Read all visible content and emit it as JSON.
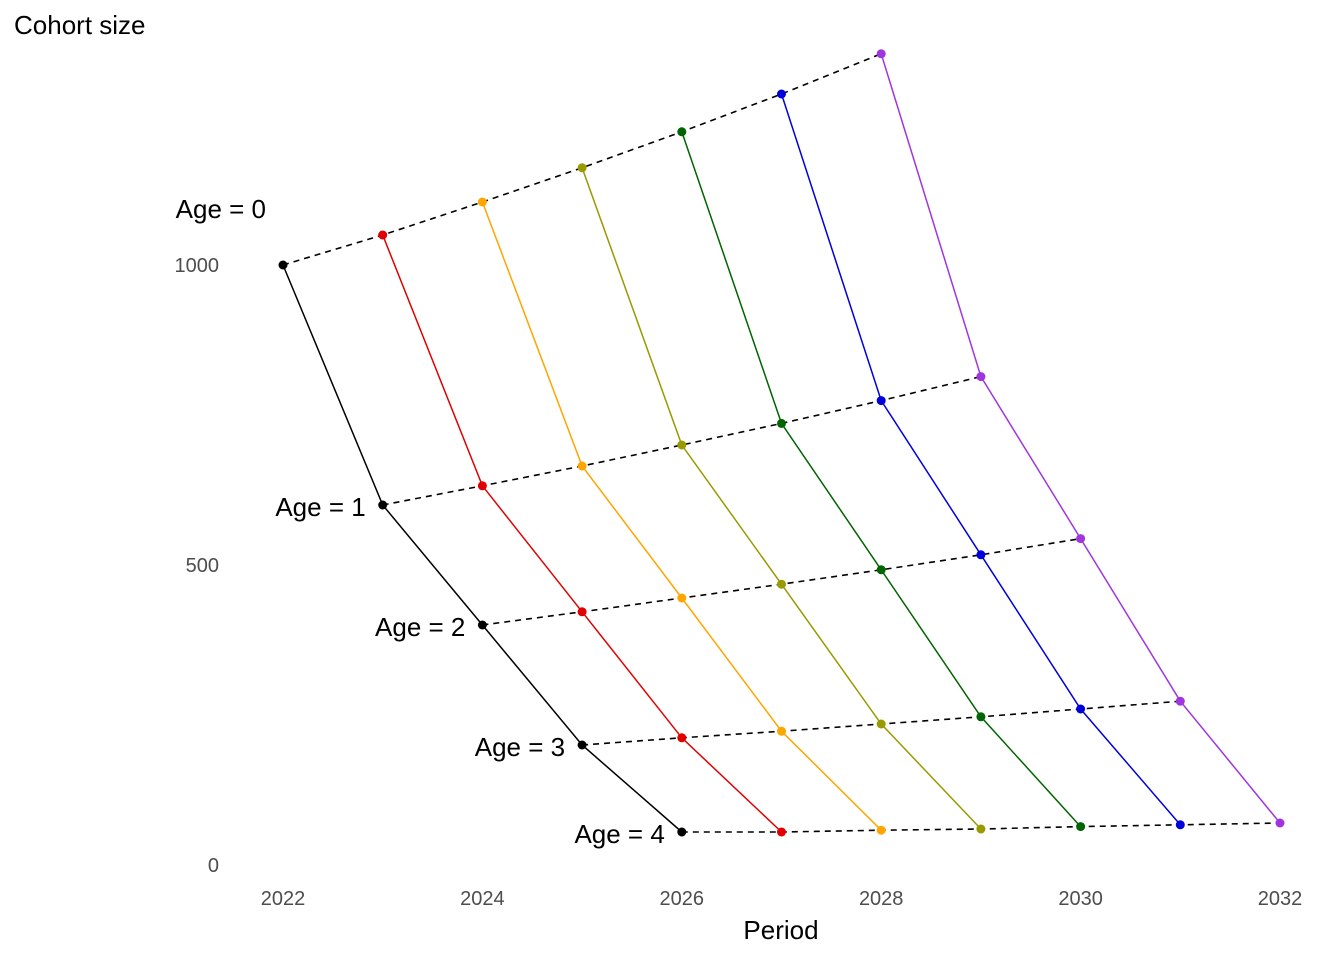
{
  "chart_data": {
    "type": "line",
    "ylabel": "Cohort size",
    "xlabel": "Period",
    "xlim": [
      2022,
      2032
    ],
    "ylim": [
      0,
      1000
    ],
    "x_ticks": [
      2022,
      2024,
      2026,
      2028,
      2030,
      2032
    ],
    "y_ticks": [
      0,
      500,
      1000
    ],
    "grid": false,
    "age_labels": [
      "Age = 0",
      "Age = 1",
      "Age = 2",
      "Age = 3",
      "Age = 4"
    ],
    "cohorts": [
      {
        "color": "#000000",
        "x": [
          2022,
          2023,
          2024,
          2025,
          2026
        ],
        "y": [
          1000,
          600,
          400,
          200,
          55
        ]
      },
      {
        "color": "#e00000",
        "x": [
          2023,
          2024,
          2025,
          2026,
          2027
        ],
        "y": [
          1050,
          632,
          422,
          212,
          55
        ]
      },
      {
        "color": "#ffa500",
        "x": [
          2024,
          2025,
          2026,
          2027,
          2028
        ],
        "y": [
          1105,
          665,
          445,
          223,
          58
        ]
      },
      {
        "color": "#999900",
        "x": [
          2025,
          2026,
          2027,
          2028,
          2029
        ],
        "y": [
          1162,
          700,
          468,
          235,
          60
        ]
      },
      {
        "color": "#006400",
        "x": [
          2026,
          2027,
          2028,
          2029,
          2030
        ],
        "y": [
          1222,
          736,
          492,
          247,
          64
        ]
      },
      {
        "color": "#0000dd",
        "x": [
          2027,
          2028,
          2029,
          2030,
          2031
        ],
        "y": [
          1285,
          774,
          517,
          260,
          67
        ]
      },
      {
        "color": "#a035e0",
        "x": [
          2028,
          2029,
          2030,
          2031,
          2032
        ],
        "y": [
          1352,
          814,
          544,
          273,
          70
        ]
      }
    ]
  }
}
